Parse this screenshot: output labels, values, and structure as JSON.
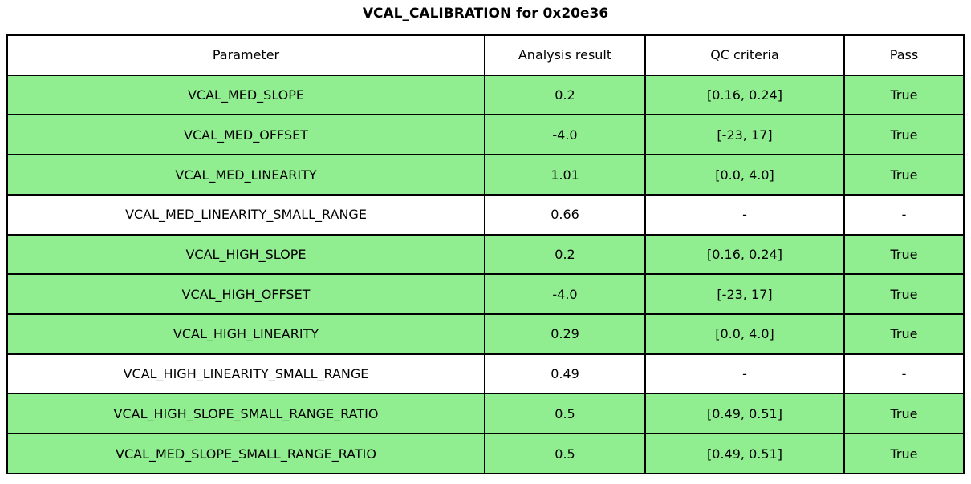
{
  "title": "VCAL_CALIBRATION for 0x20e36",
  "colors": {
    "pass_row_background": "#90EE90",
    "plain_row_background": "#FFFFFF",
    "border": "#000000",
    "text": "#000000"
  },
  "table": {
    "columns": {
      "parameter": "Parameter",
      "result": "Analysis result",
      "criteria": "QC criteria",
      "pass": "Pass"
    },
    "rows": [
      {
        "parameter": "VCAL_MED_SLOPE",
        "result": "0.2",
        "criteria": "[0.16, 0.24]",
        "pass": "True",
        "highlight": true
      },
      {
        "parameter": "VCAL_MED_OFFSET",
        "result": "-4.0",
        "criteria": "[-23, 17]",
        "pass": "True",
        "highlight": true
      },
      {
        "parameter": "VCAL_MED_LINEARITY",
        "result": "1.01",
        "criteria": "[0.0, 4.0]",
        "pass": "True",
        "highlight": true
      },
      {
        "parameter": "VCAL_MED_LINEARITY_SMALL_RANGE",
        "result": "0.66",
        "criteria": "-",
        "pass": "-",
        "highlight": false
      },
      {
        "parameter": "VCAL_HIGH_SLOPE",
        "result": "0.2",
        "criteria": "[0.16, 0.24]",
        "pass": "True",
        "highlight": true
      },
      {
        "parameter": "VCAL_HIGH_OFFSET",
        "result": "-4.0",
        "criteria": "[-23, 17]",
        "pass": "True",
        "highlight": true
      },
      {
        "parameter": "VCAL_HIGH_LINEARITY",
        "result": "0.29",
        "criteria": "[0.0, 4.0]",
        "pass": "True",
        "highlight": true
      },
      {
        "parameter": "VCAL_HIGH_LINEARITY_SMALL_RANGE",
        "result": "0.49",
        "criteria": "-",
        "pass": "-",
        "highlight": false
      },
      {
        "parameter": "VCAL_HIGH_SLOPE_SMALL_RANGE_RATIO",
        "result": "0.5",
        "criteria": "[0.49, 0.51]",
        "pass": "True",
        "highlight": true
      },
      {
        "parameter": "VCAL_MED_SLOPE_SMALL_RANGE_RATIO",
        "result": "0.5",
        "criteria": "[0.49, 0.51]",
        "pass": "True",
        "highlight": true
      }
    ]
  },
  "chart_data": {
    "type": "table",
    "title": "VCAL_CALIBRATION for 0x20e36",
    "columns": [
      "Parameter",
      "Analysis result",
      "QC criteria",
      "Pass"
    ],
    "rows": [
      [
        "VCAL_MED_SLOPE",
        "0.2",
        "[0.16, 0.24]",
        "True"
      ],
      [
        "VCAL_MED_OFFSET",
        "-4.0",
        "[-23, 17]",
        "True"
      ],
      [
        "VCAL_MED_LINEARITY",
        "1.01",
        "[0.0, 4.0]",
        "True"
      ],
      [
        "VCAL_MED_LINEARITY_SMALL_RANGE",
        "0.66",
        "-",
        "-"
      ],
      [
        "VCAL_HIGH_SLOPE",
        "0.2",
        "[0.16, 0.24]",
        "True"
      ],
      [
        "VCAL_HIGH_OFFSET",
        "-4.0",
        "[-23, 17]",
        "True"
      ],
      [
        "VCAL_HIGH_LINEARITY",
        "0.29",
        "[0.0, 4.0]",
        "True"
      ],
      [
        "VCAL_HIGH_LINEARITY_SMALL_RANGE",
        "0.49",
        "-",
        "-"
      ],
      [
        "VCAL_HIGH_SLOPE_SMALL_RANGE_RATIO",
        "0.5",
        "[0.49, 0.51]",
        "True"
      ],
      [
        "VCAL_MED_SLOPE_SMALL_RANGE_RATIO",
        "0.5",
        "[0.49, 0.51]",
        "True"
      ]
    ],
    "row_highlight_color": "#90EE90",
    "legend_position": "none",
    "grid": true
  }
}
